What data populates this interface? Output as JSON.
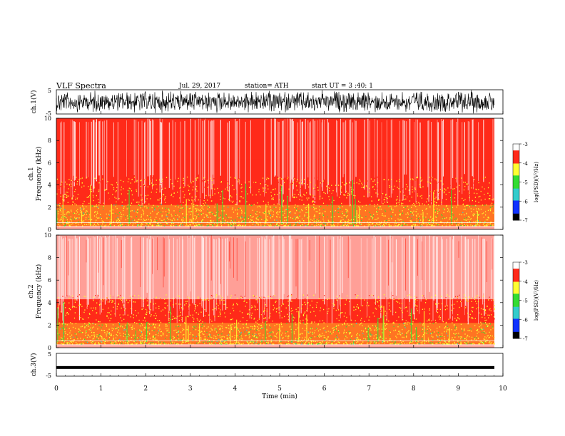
{
  "header": {
    "title": "VLF  Spectra",
    "date": "Jul.  29,  2017",
    "station": "station= ATH",
    "start": "start  UT  =    3  :40: 1"
  },
  "colors": {
    "white": "#ffffff",
    "red": "#ff2a1a",
    "yellow": "#ffff33",
    "green": "#33dd33",
    "cyan": "#33cccc",
    "blue": "#1133ff",
    "black": "#000000"
  },
  "colorbar": {
    "label": "log(PSD)(V²/Hz)",
    "ticks": [
      "-3",
      "-4",
      "-5",
      "-6",
      "-7"
    ],
    "tick_values": [
      -3,
      -4,
      -5,
      -6,
      -7
    ],
    "range": [
      -7,
      -3
    ]
  },
  "chart_data": [
    {
      "type": "line",
      "name": "ch1-waveform",
      "ylabel": "ch.1(V)",
      "ylim": [
        -5,
        5
      ],
      "yticks": [
        "5",
        "-5"
      ],
      "xlim": [
        0,
        10
      ],
      "description_values": {
        "amplitude_min": -5,
        "amplitude_max": 5
      }
    },
    {
      "type": "heatmap",
      "name": "ch1-spectrogram",
      "ylabel": "ch.1\nFrequency (kHz)",
      "ylabel_lines": [
        "ch.1",
        "Frequency (kHz)"
      ],
      "xlim": [
        0,
        9.8
      ],
      "ylim": [
        0,
        10
      ],
      "yticks": [
        "0",
        "2",
        "4",
        "6",
        "8",
        "10"
      ],
      "ytick_values": [
        0,
        2,
        4,
        6,
        8,
        10
      ],
      "bands_khz": [
        {
          "from": 0,
          "to": 0.3,
          "level": -3.3
        },
        {
          "from": 0.3,
          "to": 2.2,
          "level": -4.4
        },
        {
          "from": 2.2,
          "to": 4.2,
          "level": -4.2
        },
        {
          "from": 4.2,
          "to": 6.3,
          "level": -3.9
        },
        {
          "from": 6.3,
          "to": 10,
          "level": -3.6
        }
      ]
    },
    {
      "type": "heatmap",
      "name": "ch2-spectrogram",
      "ylabel": "ch.2\nFrequency (kHz)",
      "ylabel_lines": [
        "ch.2",
        "Frequency (kHz)"
      ],
      "xlim": [
        0,
        9.8
      ],
      "ylim": [
        0,
        10
      ],
      "yticks": [
        "0",
        "2",
        "4",
        "6",
        "8",
        "10"
      ],
      "ytick_values": [
        0,
        2,
        4,
        6,
        8,
        10
      ],
      "bands_khz": [
        {
          "from": 0,
          "to": 0.3,
          "level": -3.3
        },
        {
          "from": 0.3,
          "to": 2.2,
          "level": -4.5
        },
        {
          "from": 2.2,
          "to": 4.3,
          "level": -4.3
        },
        {
          "from": 4.3,
          "to": 10,
          "level": -3.4
        }
      ]
    },
    {
      "type": "line",
      "name": "ch3-waveform",
      "ylabel": "ch.3(V)",
      "ylim": [
        -5,
        5
      ],
      "yticks": [
        "5",
        "-5"
      ],
      "xlim": [
        0,
        9.8
      ],
      "description_values": {
        "baseline": -1.2
      }
    }
  ],
  "xaxis": {
    "label": "Time  (min)",
    "ticks": [
      "0",
      "1",
      "2",
      "3",
      "4",
      "5",
      "6",
      "7",
      "8",
      "9",
      "10"
    ],
    "tick_values": [
      0,
      1,
      2,
      3,
      4,
      5,
      6,
      7,
      8,
      9,
      10
    ],
    "range": [
      0,
      10
    ]
  }
}
